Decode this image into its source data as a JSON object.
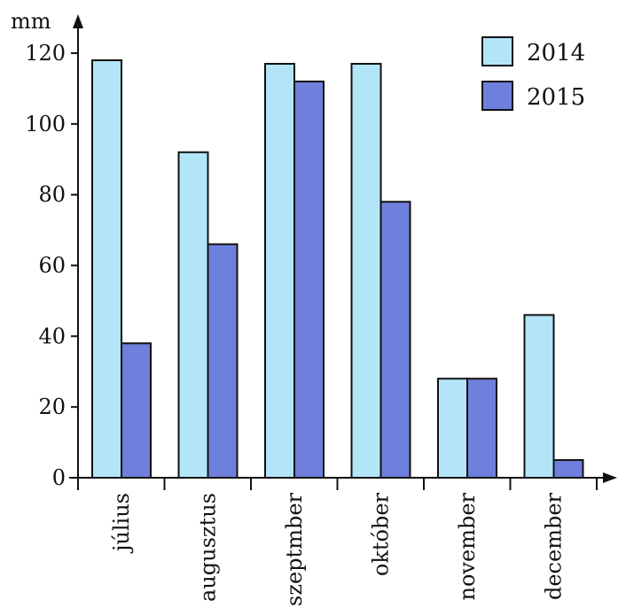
{
  "chart_data": {
    "type": "bar",
    "ylabel": "mm",
    "ylim": [
      0,
      120
    ],
    "yticks": [
      0,
      20,
      40,
      60,
      80,
      100,
      120
    ],
    "categories": [
      "július",
      "augusztus",
      "szeptmber",
      "október",
      "november",
      "december"
    ],
    "series": [
      {
        "name": "2014",
        "color": "#b3e5f9",
        "values": [
          118,
          92,
          117,
          117,
          28,
          46
        ]
      },
      {
        "name": "2015",
        "color": "#6f7fdc",
        "values": [
          38,
          66,
          112,
          78,
          28,
          5
        ]
      }
    ],
    "legend_position": "top-right",
    "grid": false
  }
}
